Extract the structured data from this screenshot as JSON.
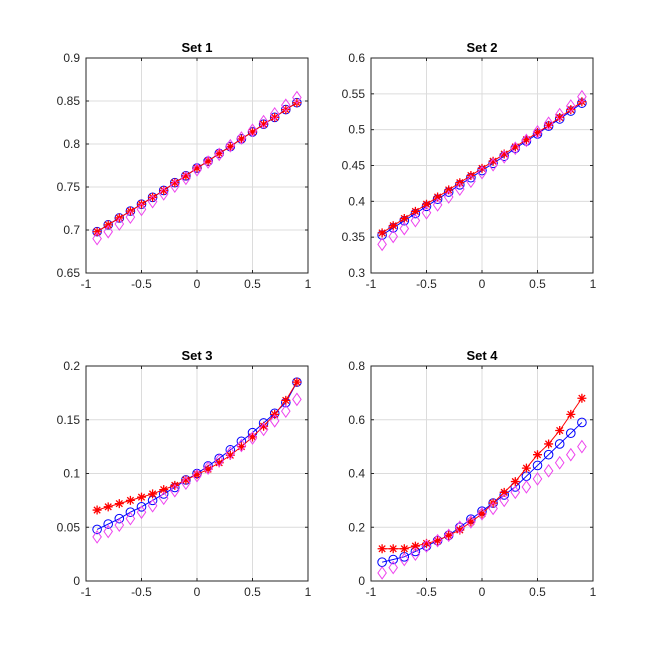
{
  "chart_data": [
    {
      "type": "line",
      "title": "Set 1",
      "xlabel": "",
      "ylabel": "",
      "xlim": [
        -1,
        1
      ],
      "ylim": [
        0.65,
        0.9
      ],
      "xticks": [
        -1,
        -0.5,
        0,
        0.5,
        1
      ],
      "xtick_labels": [
        "-1",
        "-0.5",
        "0",
        "0.5",
        "1"
      ],
      "yticks": [
        0.65,
        0.7,
        0.75,
        0.8,
        0.85,
        0.9
      ],
      "ytick_labels": [
        "0.65",
        "0.7",
        "0.75",
        "0.8",
        "0.85",
        "0.9"
      ],
      "grid": true,
      "x": [
        -0.9,
        -0.8,
        -0.7,
        -0.6,
        -0.5,
        -0.4,
        -0.3,
        -0.2,
        -0.1,
        0,
        0.1,
        0.2,
        0.3,
        0.4,
        0.5,
        0.6,
        0.7,
        0.8,
        0.9
      ],
      "series": [
        {
          "marker": "circle",
          "line": true,
          "color": "#0000ff",
          "values": [
            0.698,
            0.706,
            0.714,
            0.722,
            0.73,
            0.738,
            0.746,
            0.755,
            0.763,
            0.772,
            0.78,
            0.789,
            0.797,
            0.806,
            0.814,
            0.823,
            0.831,
            0.84,
            0.848
          ]
        },
        {
          "marker": "star",
          "line": true,
          "color": "#ff0000",
          "values": [
            0.698,
            0.706,
            0.714,
            0.722,
            0.73,
            0.738,
            0.746,
            0.755,
            0.763,
            0.772,
            0.78,
            0.789,
            0.797,
            0.806,
            0.814,
            0.823,
            0.831,
            0.84,
            0.848
          ]
        },
        {
          "marker": "diamond",
          "line": false,
          "color": "#ee44ee",
          "values": [
            0.69,
            0.698,
            0.707,
            0.715,
            0.724,
            0.733,
            0.742,
            0.751,
            0.76,
            0.77,
            0.779,
            0.788,
            0.798,
            0.807,
            0.816,
            0.826,
            0.835,
            0.845,
            0.854
          ]
        }
      ]
    },
    {
      "type": "line",
      "title": "Set 2",
      "xlabel": "",
      "ylabel": "",
      "xlim": [
        -1,
        1
      ],
      "ylim": [
        0.3,
        0.6
      ],
      "xticks": [
        -1,
        -0.5,
        0,
        0.5,
        1
      ],
      "xtick_labels": [
        "-1",
        "-0.5",
        "0",
        "0.5",
        "1"
      ],
      "yticks": [
        0.3,
        0.35,
        0.4,
        0.45,
        0.5,
        0.55,
        0.6
      ],
      "ytick_labels": [
        "0.3",
        "0.35",
        "0.4",
        "0.45",
        "0.5",
        "0.55",
        "0.6"
      ],
      "grid": true,
      "x": [
        -0.9,
        -0.8,
        -0.7,
        -0.6,
        -0.5,
        -0.4,
        -0.3,
        -0.2,
        -0.1,
        0,
        0.1,
        0.2,
        0.3,
        0.4,
        0.5,
        0.6,
        0.7,
        0.8,
        0.9
      ],
      "series": [
        {
          "marker": "circle",
          "line": true,
          "color": "#0000ff",
          "values": [
            0.353,
            0.363,
            0.373,
            0.383,
            0.393,
            0.403,
            0.413,
            0.423,
            0.433,
            0.443,
            0.453,
            0.463,
            0.474,
            0.484,
            0.494,
            0.505,
            0.515,
            0.526,
            0.537
          ]
        },
        {
          "marker": "star",
          "line": true,
          "color": "#ff0000",
          "values": [
            0.356,
            0.366,
            0.376,
            0.386,
            0.396,
            0.406,
            0.416,
            0.426,
            0.436,
            0.446,
            0.456,
            0.466,
            0.476,
            0.486,
            0.496,
            0.506,
            0.517,
            0.528,
            0.539
          ]
        },
        {
          "marker": "diamond",
          "line": false,
          "color": "#ee44ee",
          "values": [
            0.34,
            0.351,
            0.362,
            0.373,
            0.384,
            0.395,
            0.406,
            0.417,
            0.428,
            0.44,
            0.451,
            0.462,
            0.474,
            0.485,
            0.497,
            0.509,
            0.521,
            0.533,
            0.546
          ]
        }
      ]
    },
    {
      "type": "line",
      "title": "Set 3",
      "xlabel": "",
      "ylabel": "",
      "xlim": [
        -1,
        1
      ],
      "ylim": [
        0,
        0.2
      ],
      "xticks": [
        -1,
        -0.5,
        0,
        0.5,
        1
      ],
      "xtick_labels": [
        "-1",
        "-0.5",
        "0",
        "0.5",
        "1"
      ],
      "yticks": [
        0,
        0.05,
        0.1,
        0.15,
        0.2
      ],
      "ytick_labels": [
        "0",
        "0.05",
        "0.1",
        "0.15",
        "0.2"
      ],
      "grid": true,
      "x": [
        -0.9,
        -0.8,
        -0.7,
        -0.6,
        -0.5,
        -0.4,
        -0.3,
        -0.2,
        -0.1,
        0,
        0.1,
        0.2,
        0.3,
        0.4,
        0.5,
        0.6,
        0.7,
        0.8,
        0.9
      ],
      "series": [
        {
          "marker": "circle",
          "line": true,
          "color": "#0000ff",
          "values": [
            0.048,
            0.053,
            0.058,
            0.064,
            0.069,
            0.075,
            0.081,
            0.087,
            0.094,
            0.1,
            0.107,
            0.114,
            0.122,
            0.13,
            0.138,
            0.147,
            0.156,
            0.166,
            0.185
          ]
        },
        {
          "marker": "star",
          "line": true,
          "color": "#ff0000",
          "values": [
            0.066,
            0.069,
            0.072,
            0.075,
            0.078,
            0.081,
            0.085,
            0.089,
            0.094,
            0.099,
            0.104,
            0.11,
            0.117,
            0.125,
            0.134,
            0.144,
            0.155,
            0.168,
            0.185
          ]
        },
        {
          "marker": "diamond",
          "line": false,
          "color": "#ee44ee",
          "values": [
            0.041,
            0.046,
            0.052,
            0.058,
            0.064,
            0.07,
            0.077,
            0.084,
            0.091,
            0.098,
            0.105,
            0.112,
            0.119,
            0.126,
            0.133,
            0.141,
            0.149,
            0.158,
            0.169
          ]
        }
      ]
    },
    {
      "type": "line",
      "title": "Set 4",
      "xlabel": "",
      "ylabel": "",
      "xlim": [
        -1,
        1
      ],
      "ylim": [
        0,
        0.8
      ],
      "xticks": [
        -1,
        -0.5,
        0,
        0.5,
        1
      ],
      "xtick_labels": [
        "-1",
        "-0.5",
        "0",
        "0.5",
        "1"
      ],
      "yticks": [
        0,
        0.2,
        0.4,
        0.6,
        0.8
      ],
      "ytick_labels": [
        "0",
        "0.2",
        "0.4",
        "0.6",
        "0.8"
      ],
      "grid": true,
      "x": [
        -0.9,
        -0.8,
        -0.7,
        -0.6,
        -0.5,
        -0.4,
        -0.3,
        -0.2,
        -0.1,
        0,
        0.1,
        0.2,
        0.3,
        0.4,
        0.5,
        0.6,
        0.7,
        0.8,
        0.9
      ],
      "series": [
        {
          "marker": "circle",
          "line": true,
          "color": "#0000ff",
          "values": [
            0.07,
            0.08,
            0.09,
            0.11,
            0.13,
            0.15,
            0.17,
            0.2,
            0.23,
            0.26,
            0.29,
            0.32,
            0.35,
            0.39,
            0.43,
            0.47,
            0.51,
            0.55,
            0.59
          ]
        },
        {
          "marker": "star",
          "line": true,
          "color": "#ff0000",
          "values": [
            0.12,
            0.12,
            0.12,
            0.13,
            0.14,
            0.15,
            0.17,
            0.19,
            0.22,
            0.25,
            0.29,
            0.33,
            0.37,
            0.42,
            0.47,
            0.51,
            0.56,
            0.62,
            0.68
          ]
        },
        {
          "marker": "diamond",
          "line": false,
          "color": "#ee44ee",
          "values": [
            0.03,
            0.05,
            0.08,
            0.1,
            0.13,
            0.15,
            0.17,
            0.2,
            0.22,
            0.25,
            0.27,
            0.3,
            0.33,
            0.35,
            0.38,
            0.41,
            0.44,
            0.47,
            0.5
          ]
        }
      ]
    }
  ]
}
